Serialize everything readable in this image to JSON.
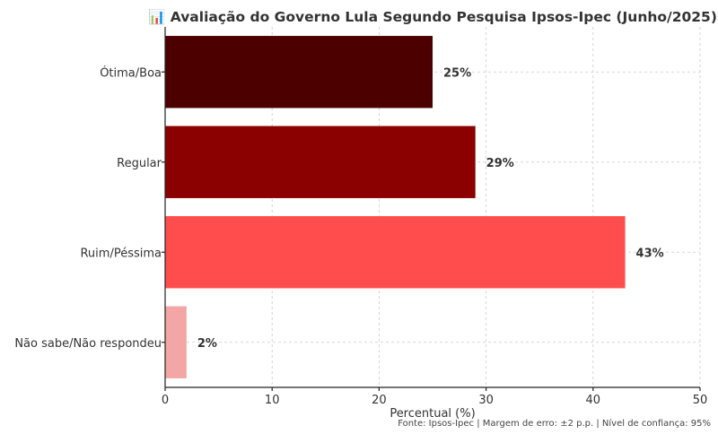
{
  "chart_data": {
    "type": "bar",
    "orientation": "horizontal",
    "title": "📊 Avaliação do Governo Lula Segundo Pesquisa Ipsos-Ipec (Junho/2025)",
    "categories": [
      "Ótima/Boa",
      "Regular",
      "Ruim/Péssima",
      "Não sabe/Não respondeu"
    ],
    "values": [
      25,
      29,
      43,
      2
    ],
    "value_labels": [
      "25%",
      "29%",
      "43%",
      "2%"
    ],
    "colors": [
      "#4d0000",
      "#8b0000",
      "#ff4d4d",
      "#f4a6a6"
    ],
    "xlabel": "Percentual (%)",
    "ylabel": "",
    "xlim": [
      0,
      50
    ],
    "xticks": [
      0,
      10,
      20,
      30,
      40,
      50
    ],
    "grid": true,
    "source": "Fonte: Ipsos-Ipec | Margem de erro: ±2 p.p. | Nível de confiança: 95%"
  }
}
